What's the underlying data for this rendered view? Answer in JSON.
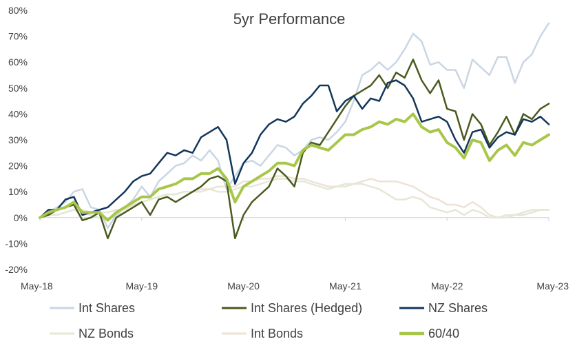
{
  "chart_data": {
    "type": "line",
    "title": "5yr Performance",
    "x": [
      "May-18",
      "Jun-18",
      "Jul-18",
      "Aug-18",
      "Sep-18",
      "Oct-18",
      "Nov-18",
      "Dec-18",
      "Jan-19",
      "Feb-19",
      "Mar-19",
      "Apr-19",
      "May-19",
      "Jun-19",
      "Jul-19",
      "Aug-19",
      "Sep-19",
      "Oct-19",
      "Nov-19",
      "Dec-19",
      "Jan-20",
      "Feb-20",
      "Mar-20",
      "Apr-20",
      "May-20",
      "Jun-20",
      "Jul-20",
      "Aug-20",
      "Sep-20",
      "Oct-20",
      "Nov-20",
      "Dec-20",
      "Jan-21",
      "Feb-21",
      "Mar-21",
      "Apr-21",
      "May-21",
      "Jun-21",
      "Jul-21",
      "Aug-21",
      "Sep-21",
      "Oct-21",
      "Nov-21",
      "Dec-21",
      "Jan-22",
      "Feb-22",
      "Mar-22",
      "Apr-22",
      "May-22",
      "Jun-22",
      "Jul-22",
      "Aug-22",
      "Sep-22",
      "Oct-22",
      "Nov-22",
      "Dec-22",
      "Jan-23",
      "Feb-23",
      "Mar-23",
      "Apr-23",
      "May-23"
    ],
    "x_tick_labels": [
      "May-18",
      "May-19",
      "May-20",
      "May-21",
      "May-22",
      "May-23"
    ],
    "y_tick_labels": [
      "80%",
      "70%",
      "60%",
      "50%",
      "40%",
      "30%",
      "20%",
      "10%",
      "0%",
      "-10%",
      "-20%"
    ],
    "ylim": [
      -20,
      80
    ],
    "y_step": 10,
    "y_unit": "%",
    "grid": false,
    "legend_position": "bottom",
    "series": [
      {
        "name": "Int Shares",
        "color": "#c9d6e3",
        "width": 2.5,
        "values": [
          0,
          2,
          4,
          6,
          10,
          11,
          4,
          3,
          -4,
          1,
          4,
          7,
          12,
          8,
          14,
          17,
          20,
          21,
          24,
          22,
          26,
          22,
          11,
          16,
          21,
          22,
          20,
          24,
          28,
          27,
          24,
          26,
          30,
          31,
          30,
          33,
          37,
          45,
          55,
          57,
          60,
          57,
          60,
          65,
          71,
          68,
          59,
          60,
          57,
          57,
          50,
          61,
          58,
          55,
          62,
          62,
          52,
          60,
          63,
          70,
          75
        ]
      },
      {
        "name": "Int Shares (Hedged)",
        "color": "#4a5a1e",
        "width": 2.5,
        "values": [
          0,
          1,
          3,
          4,
          5,
          -1,
          0,
          2,
          -8,
          0,
          2,
          4,
          6,
          1,
          7,
          8,
          6,
          8,
          10,
          12,
          15,
          16,
          14,
          -8,
          1,
          6,
          9,
          12,
          19,
          16,
          12,
          25,
          29,
          28,
          33,
          38,
          43,
          47,
          49,
          51,
          55,
          50,
          56,
          54,
          61,
          53,
          48,
          53,
          42,
          41,
          30,
          40,
          36,
          28,
          33,
          39,
          32,
          40,
          38,
          42,
          44
        ]
      },
      {
        "name": "NZ Shares",
        "color": "#12365a",
        "width": 2.5,
        "values": [
          0,
          3,
          3,
          7,
          8,
          1,
          2,
          3,
          4,
          7,
          10,
          14,
          16,
          17,
          21,
          25,
          24,
          26,
          25,
          31,
          33,
          35,
          30,
          13,
          21,
          25,
          32,
          36,
          38,
          37,
          39,
          44,
          47,
          51,
          51,
          41,
          45,
          47,
          42,
          46,
          45,
          52,
          53,
          51,
          46,
          37,
          38,
          39,
          37,
          30,
          25,
          33,
          34,
          27,
          31,
          33,
          32,
          38,
          37,
          39,
          36
        ]
      },
      {
        "name": "NZ Bonds",
        "color": "#e4e8d6",
        "width": 2.5,
        "values": [
          0,
          1,
          1,
          2,
          3,
          2,
          1,
          0,
          -1,
          1,
          2,
          4,
          6,
          7,
          8,
          9,
          9,
          10,
          10,
          10,
          11,
          10,
          10,
          11,
          12,
          12,
          13,
          14,
          15,
          15,
          14,
          14,
          13,
          12,
          11,
          12,
          12,
          13,
          13,
          12,
          11,
          9,
          7,
          7,
          8,
          7,
          4,
          3,
          2,
          3,
          1,
          3,
          2,
          0,
          0,
          1,
          1,
          2,
          3,
          3,
          3
        ]
      },
      {
        "name": "Int Bonds",
        "color": "#ede2d5",
        "width": 2.5,
        "values": [
          0,
          1,
          1,
          2,
          3,
          3,
          2,
          2,
          2,
          3,
          3,
          5,
          6,
          7,
          8,
          9,
          9,
          10,
          10,
          11,
          11,
          12,
          12,
          12,
          14,
          14,
          15,
          15,
          16,
          16,
          15,
          15,
          14,
          13,
          12,
          12,
          13,
          13,
          14,
          15,
          14,
          14,
          14,
          13,
          12,
          10,
          8,
          7,
          5,
          5,
          4,
          6,
          4,
          1,
          0,
          0,
          1,
          1,
          2,
          3,
          3
        ]
      },
      {
        "name": "60/40",
        "color": "#a8c74a",
        "width": 4,
        "values": [
          0,
          2,
          3,
          4,
          6,
          2,
          2,
          2,
          -1,
          2,
          4,
          6,
          8,
          8,
          11,
          12,
          13,
          15,
          15,
          17,
          17,
          19,
          15,
          6,
          12,
          14,
          16,
          18,
          21,
          21,
          20,
          26,
          28,
          27,
          26,
          29,
          32,
          32,
          34,
          35,
          37,
          36,
          38,
          37,
          40,
          35,
          33,
          34,
          29,
          27,
          23,
          30,
          29,
          22,
          26,
          28,
          24,
          29,
          28,
          30,
          32
        ]
      }
    ]
  }
}
